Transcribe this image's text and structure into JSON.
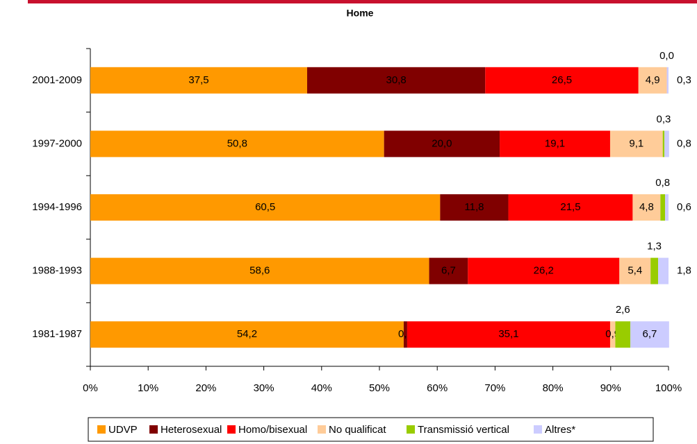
{
  "chart_data": {
    "type": "stacked_barh",
    "title": "Home",
    "categories": [
      "2001-2009",
      "1997-2000",
      "1994-1996",
      "1988-1993",
      "1981-1987"
    ],
    "series": [
      {
        "name": "UDVP",
        "color": "#ff9900",
        "values": [
          37.5,
          50.8,
          60.5,
          58.6,
          54.2
        ],
        "value_labels": [
          "37,5",
          "50,8",
          "60,5",
          "58,6",
          "54,2"
        ]
      },
      {
        "name": "Heterosexual",
        "color": "#800000",
        "values": [
          30.8,
          20.0,
          11.8,
          6.7,
          0.6
        ],
        "value_labels": [
          "30,8",
          "20,0",
          "11,8",
          "6,7",
          "0,6"
        ]
      },
      {
        "name": "Homo/bisexual",
        "color": "#ff0000",
        "values": [
          26.5,
          19.1,
          21.5,
          26.2,
          35.1
        ],
        "value_labels": [
          "26,5",
          "19,1",
          "21,5",
          "26,2",
          "35,1"
        ]
      },
      {
        "name": "No qualificat",
        "color": "#ffcc99",
        "values": [
          4.9,
          9.1,
          4.8,
          5.4,
          0.9
        ],
        "value_labels": [
          "4,9",
          "9,1",
          "4,8",
          "5,4",
          "0,9"
        ]
      },
      {
        "name": "Transmissió vertical",
        "color": "#99cc00",
        "values": [
          0.0,
          0.3,
          0.8,
          1.3,
          2.6
        ],
        "value_labels": [
          "0,0",
          "0,3",
          "0,8",
          "1,3",
          "2,6"
        ]
      },
      {
        "name": "Altres*",
        "color": "#ccccff",
        "values": [
          0.3,
          0.8,
          0.6,
          1.8,
          6.7
        ],
        "value_labels": [
          "0,3",
          "0,8",
          "0,6",
          "1,8",
          "6,7"
        ]
      }
    ],
    "xlim": [
      0,
      100
    ],
    "xticks": [
      {
        "value": 0,
        "label": "0%"
      },
      {
        "value": 10,
        "label": "10%"
      },
      {
        "value": 20,
        "label": "20%"
      },
      {
        "value": 30,
        "label": "30%"
      },
      {
        "value": 40,
        "label": "40%"
      },
      {
        "value": 50,
        "label": "50%"
      },
      {
        "value": 60,
        "label": "60%"
      },
      {
        "value": 70,
        "label": "70%"
      },
      {
        "value": 80,
        "label": "80%"
      },
      {
        "value": 90,
        "label": "90%"
      },
      {
        "value": 100,
        "label": "100%"
      }
    ],
    "legend": "bottom"
  }
}
